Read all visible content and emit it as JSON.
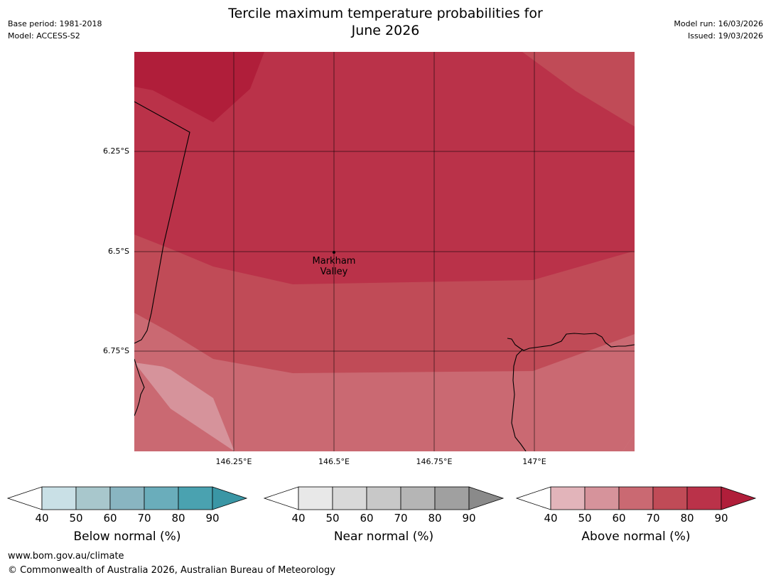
{
  "title_line1": "Tercile maximum temperature probabilities for",
  "title_line2": "June 2026",
  "base_period": "Base period: 1981-2018",
  "model": "Model: ACCESS-S2",
  "model_run": "Model run: 16/03/2026",
  "issued": "Issued: 19/03/2026",
  "map": {
    "lat_labels": [
      "6.25°S",
      "6.5°S",
      "6.75°S"
    ],
    "lon_labels": [
      "146.25°E",
      "146.5°E",
      "146.75°E",
      "147°E"
    ],
    "place_line1": "Markham",
    "place_line2": "Valley",
    "colors": {
      "above_90": "#b01e3a",
      "above_80": "#ba3249",
      "above_70": "#c04b57",
      "above_60": "#ca6972",
      "above_50": "#d6939b"
    }
  },
  "colorbars": [
    {
      "label": "Below normal (%)",
      "ticks": [
        "40",
        "50",
        "60",
        "70",
        "80",
        "90"
      ],
      "colors": [
        "#c9e0e6",
        "#a8c7cc",
        "#89b5c1",
        "#6aadbb",
        "#4aa2b0",
        "#3a96a5"
      ]
    },
    {
      "label": "Near normal (%)",
      "ticks": [
        "40",
        "50",
        "60",
        "70",
        "80",
        "90"
      ],
      "colors": [
        "#e8e8e8",
        "#d9d9d9",
        "#c8c8c8",
        "#b5b5b5",
        "#a0a0a0",
        "#8a8a8a"
      ]
    },
    {
      "label": "Above normal (%)",
      "ticks": [
        "40",
        "50",
        "60",
        "70",
        "80",
        "90"
      ],
      "colors": [
        "#e2b4ba",
        "#d6939b",
        "#ca6972",
        "#c04b57",
        "#ba3249",
        "#b01e3a"
      ]
    }
  ],
  "footer_url": "www.bom.gov.au/climate",
  "footer_copyright": "© Commonwealth of Australia 2026, Australian Bureau of Meteorology"
}
